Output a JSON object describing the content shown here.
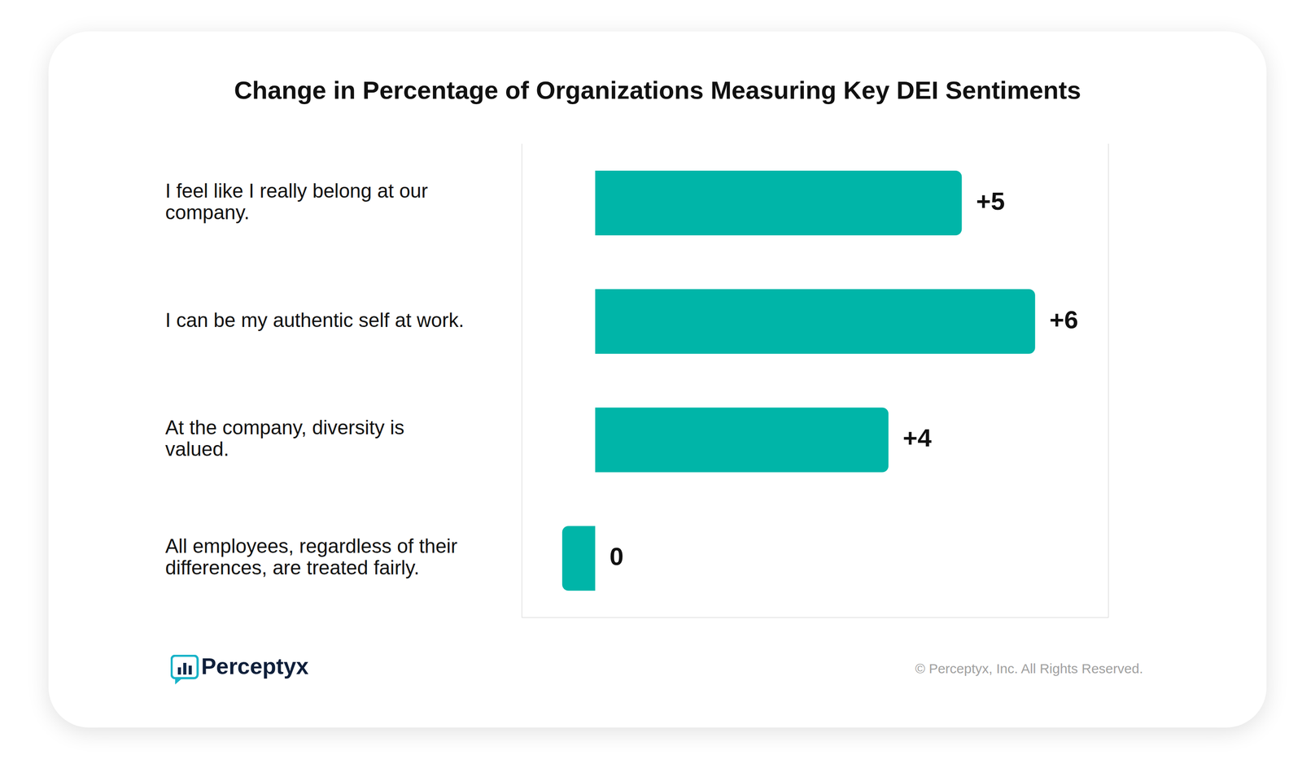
{
  "chart_data": {
    "type": "bar",
    "title": "Change in Percentage of Organizations Measuring Key DEI Sentiments",
    "orientation": "horizontal",
    "categories": [
      "I feel like I really belong at our company.",
      "I can be my authentic self at work.",
      "At the company, diversity is valued.",
      "All employees, regardless of their differences, are treated fairly."
    ],
    "values": [
      5,
      6,
      4,
      -0.45
    ],
    "value_labels": [
      "+5",
      "+6",
      "+4",
      "0"
    ],
    "data_labels": true,
    "color": "#00b5a8",
    "xlim": [
      -1,
      7
    ],
    "xticks": [
      0
    ],
    "grid": true,
    "tick_labels": false,
    "logo_text": "Perceptyx",
    "copyright": "© Perceptyx, Inc. All Rights Reserved."
  }
}
